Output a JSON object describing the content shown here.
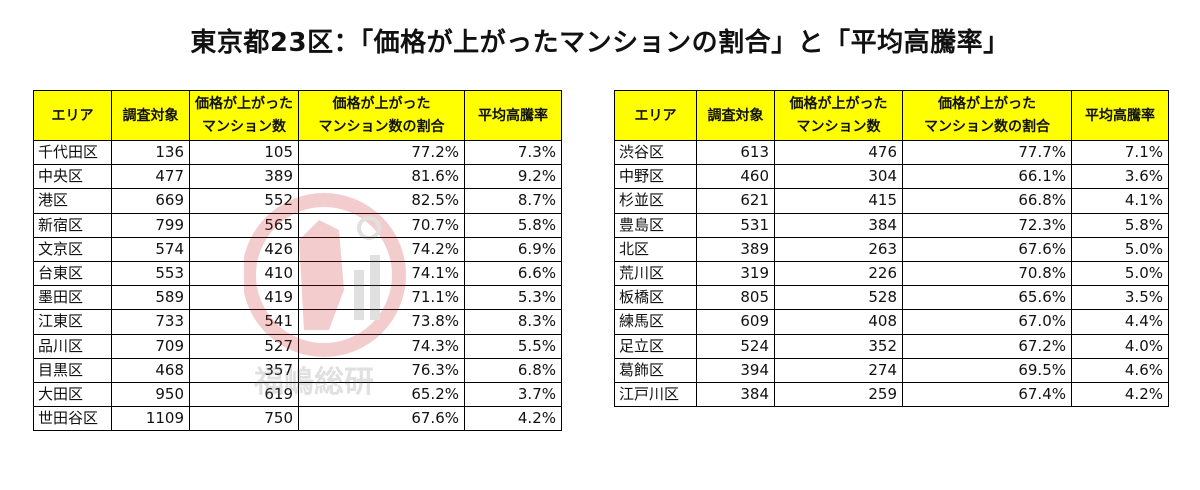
{
  "title": "東京都23区：「価格が上がったマンションの割合」と「平均高騰率」",
  "headers": {
    "area": "エリア",
    "survey_count": "調査対象",
    "rising_line1": "価格が上がった",
    "rising_line2": "マンション数",
    "ratio_line1": "価格が上がった",
    "ratio_line2": "マンション数の割合",
    "avg_rate": "平均高騰率"
  },
  "left_rows": [
    {
      "area": "千代田区",
      "count": "136",
      "rising": "105",
      "ratio": "77.2%",
      "rate": "7.3%"
    },
    {
      "area": "中央区",
      "count": "477",
      "rising": "389",
      "ratio": "81.6%",
      "rate": "9.2%"
    },
    {
      "area": "港区",
      "count": "669",
      "rising": "552",
      "ratio": "82.5%",
      "rate": "8.7%"
    },
    {
      "area": "新宿区",
      "count": "799",
      "rising": "565",
      "ratio": "70.7%",
      "rate": "5.8%"
    },
    {
      "area": "文京区",
      "count": "574",
      "rising": "426",
      "ratio": "74.2%",
      "rate": "6.9%"
    },
    {
      "area": "台東区",
      "count": "553",
      "rising": "410",
      "ratio": "74.1%",
      "rate": "6.6%"
    },
    {
      "area": "墨田区",
      "count": "589",
      "rising": "419",
      "ratio": "71.1%",
      "rate": "5.3%"
    },
    {
      "area": "江東区",
      "count": "733",
      "rising": "541",
      "ratio": "73.8%",
      "rate": "8.3%"
    },
    {
      "area": "品川区",
      "count": "709",
      "rising": "527",
      "ratio": "74.3%",
      "rate": "5.5%"
    },
    {
      "area": "目黒区",
      "count": "468",
      "rising": "357",
      "ratio": "76.3%",
      "rate": "6.8%"
    },
    {
      "area": "大田区",
      "count": "950",
      "rising": "619",
      "ratio": "65.2%",
      "rate": "3.7%"
    },
    {
      "area": "世田谷区",
      "count": "1109",
      "rising": "750",
      "ratio": "67.6%",
      "rate": "4.2%"
    }
  ],
  "right_rows": [
    {
      "area": "渋谷区",
      "count": "613",
      "rising": "476",
      "ratio": "77.7%",
      "rate": "7.1%"
    },
    {
      "area": "中野区",
      "count": "460",
      "rising": "304",
      "ratio": "66.1%",
      "rate": "3.6%"
    },
    {
      "area": "杉並区",
      "count": "621",
      "rising": "415",
      "ratio": "66.8%",
      "rate": "4.1%"
    },
    {
      "area": "豊島区",
      "count": "531",
      "rising": "384",
      "ratio": "72.3%",
      "rate": "5.8%"
    },
    {
      "area": "北区",
      "count": "389",
      "rising": "263",
      "ratio": "67.6%",
      "rate": "5.0%"
    },
    {
      "area": "荒川区",
      "count": "319",
      "rising": "226",
      "ratio": "70.8%",
      "rate": "5.0%"
    },
    {
      "area": "板橋区",
      "count": "805",
      "rising": "528",
      "ratio": "65.6%",
      "rate": "3.5%"
    },
    {
      "area": "練馬区",
      "count": "609",
      "rising": "408",
      "ratio": "67.0%",
      "rate": "4.4%"
    },
    {
      "area": "足立区",
      "count": "524",
      "rising": "352",
      "ratio": "67.2%",
      "rate": "4.0%"
    },
    {
      "area": "葛飾区",
      "count": "394",
      "rising": "274",
      "ratio": "69.5%",
      "rate": "4.6%"
    },
    {
      "area": "江戸川区",
      "count": "384",
      "rising": "259",
      "ratio": "67.4%",
      "rate": "4.2%"
    }
  ],
  "watermark": {
    "text": "福嶋総研",
    "color": "#cc2222"
  },
  "colors": {
    "header_bg": "#ffff00",
    "border": "#000000"
  }
}
